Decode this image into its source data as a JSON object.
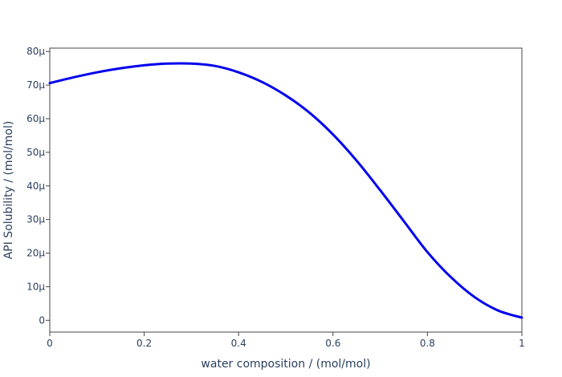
{
  "chart_data": {
    "type": "line",
    "title": "",
    "xlabel": "water composition / (mol/mol)",
    "ylabel": "API Solubility / (mol/mol)",
    "xlim": [
      0,
      1
    ],
    "ylim": [
      -3.5,
      81
    ],
    "x_ticks": [
      0,
      0.2,
      0.4,
      0.6,
      0.8,
      1
    ],
    "x_tick_labels": [
      "0",
      "0.2",
      "0.4",
      "0.6",
      "0.8",
      "1"
    ],
    "y_ticks": [
      0,
      10,
      20,
      30,
      40,
      50,
      60,
      70,
      80
    ],
    "y_tick_labels": [
      "0",
      "10μ",
      "20μ",
      "30μ",
      "40μ",
      "50μ",
      "60μ",
      "70μ",
      "80μ"
    ],
    "y_unit_note": "values in μ (×1e-6) mol/mol",
    "grid": false,
    "legend": "none",
    "line_color": "#0000ee",
    "series": [
      {
        "x": [
          0,
          0.05,
          0.1,
          0.15,
          0.2,
          0.25,
          0.3,
          0.35,
          0.4,
          0.45,
          0.5,
          0.55,
          0.6,
          0.65,
          0.7,
          0.75,
          0.8,
          0.85,
          0.9,
          0.95,
          1.0
        ],
        "values": [
          70.6,
          72.3,
          73.8,
          75.0,
          75.9,
          76.4,
          76.4,
          75.7,
          73.8,
          70.9,
          66.9,
          61.8,
          55.3,
          47.5,
          38.7,
          29.5,
          20.3,
          12.8,
          6.9,
          2.9,
          0.8
        ]
      }
    ]
  }
}
